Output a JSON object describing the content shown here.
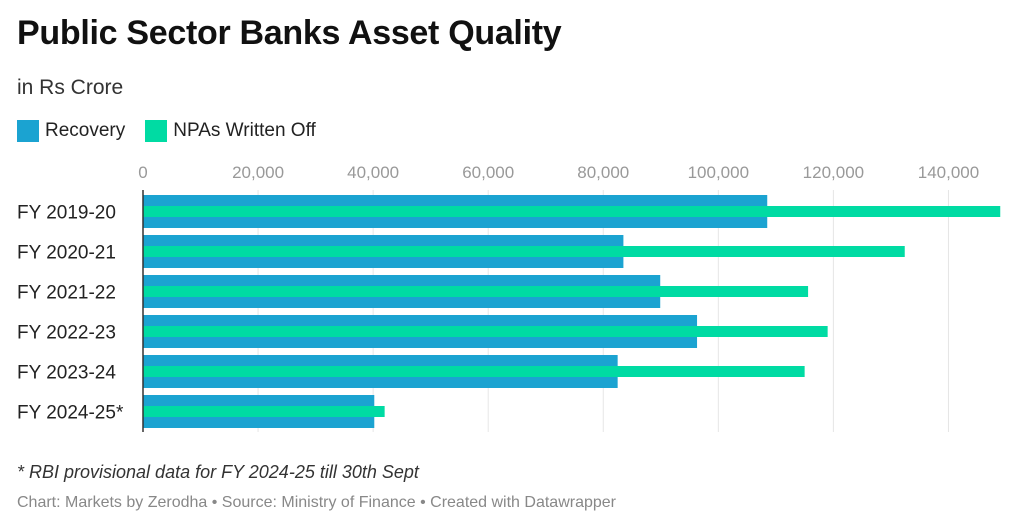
{
  "chart_data": {
    "type": "bar",
    "orientation": "horizontal",
    "title": "Public Sector Banks Asset Quality",
    "subtitle": "in Rs Crore",
    "categories": [
      "FY 2019-20",
      "FY 2020-21",
      "FY 2021-22",
      "FY 2022-23",
      "FY 2023-24",
      "FY 2024-25*"
    ],
    "series": [
      {
        "name": "Recovery",
        "color": "#1ba3d1",
        "values": [
          108500,
          83500,
          89900,
          96300,
          82500,
          40200
        ]
      },
      {
        "name": "NPAs Written Off",
        "color": "#00dba3",
        "values": [
          149000,
          132400,
          115600,
          119000,
          115000,
          42000
        ]
      }
    ],
    "xlim": [
      0,
      150000
    ],
    "ticks": [
      0,
      20000,
      40000,
      60000,
      80000,
      100000,
      120000,
      140000
    ],
    "tick_labels": [
      "0",
      "20,000",
      "40,000",
      "60,000",
      "80,000",
      "100,000",
      "120,000",
      "140,000"
    ],
    "grid": true,
    "legend_position": "top-left",
    "note": "* RBI provisional data for FY 2024-25 till 30th Sept",
    "source": "Chart: Markets by Zerodha • Source: Ministry of Finance • Created with Datawrapper"
  }
}
